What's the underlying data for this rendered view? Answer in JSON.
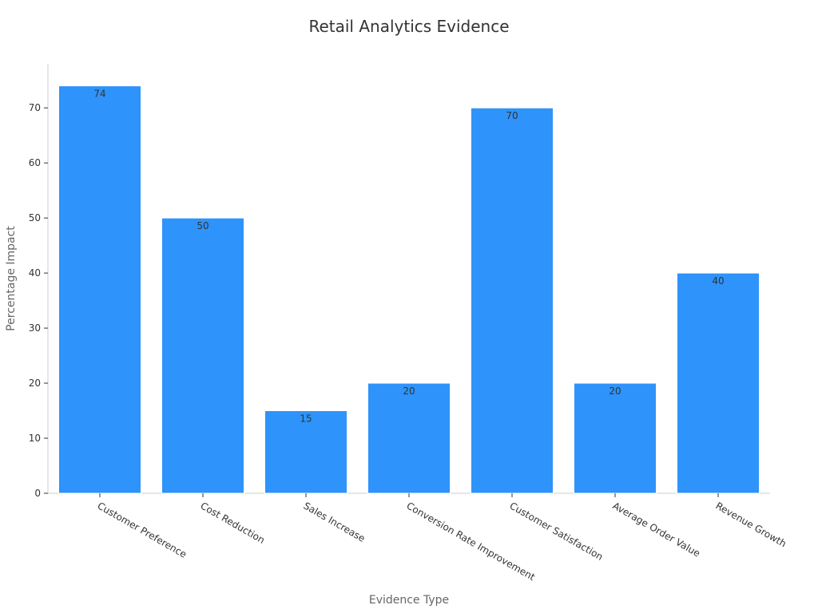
{
  "chart_data": {
    "type": "bar",
    "title": "Retail Analytics Evidence",
    "xlabel": "Evidence Type",
    "ylabel": "Percentage Impact",
    "categories": [
      "Customer Preference",
      "Cost Reduction",
      "Sales Increase",
      "Conversion Rate Improvement",
      "Customer Satisfaction",
      "Average Order Value",
      "Revenue Growth"
    ],
    "values": [
      74,
      50,
      15,
      20,
      70,
      20,
      40
    ],
    "ylim": [
      0,
      78
    ],
    "yticks": [
      0,
      10,
      20,
      30,
      40,
      50,
      60,
      70
    ],
    "grid": false,
    "legend": "none",
    "bar_color": "#2e93fa",
    "bar_edge_color": "#ffffff",
    "data_labels": true
  }
}
